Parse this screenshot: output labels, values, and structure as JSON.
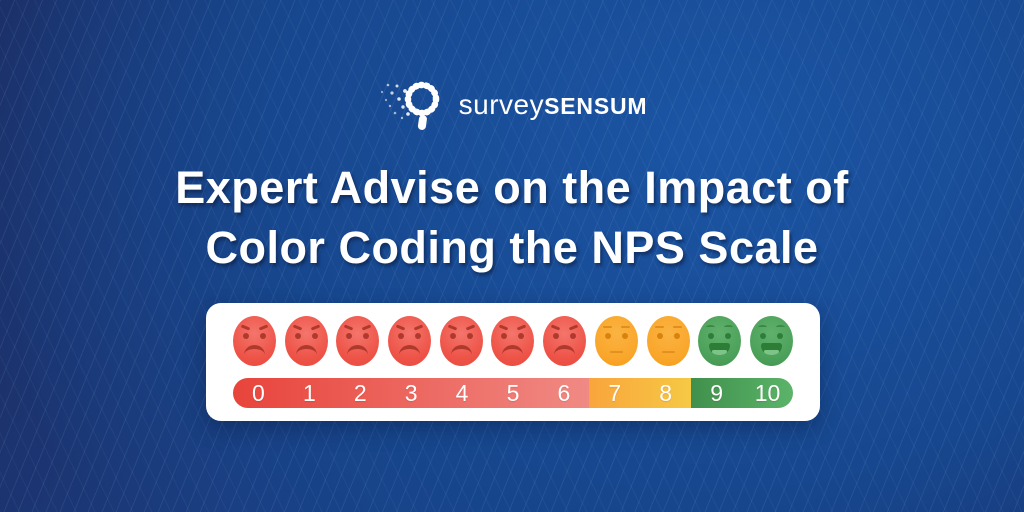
{
  "colors": {
    "background_dark": "#1C2C62",
    "background_mid": "#173F85",
    "background_light": "#1B55A4",
    "pattern_line": "rgba(151,196,240,0.10)",
    "card_background": "#FFFFFF",
    "text": "#FFFFFF",
    "detractor_face": "#EE5347",
    "passive_face": "#F9A62B",
    "promoter_face": "#4CA15A"
  },
  "logo": {
    "icon": "magnifier-particles-icon",
    "brand_light": "survey",
    "brand_bold": "SENSUM"
  },
  "title": {
    "line1": "Expert Advise on the Impact of",
    "line2": "Color Coding the NPS Scale"
  },
  "nps_scale": {
    "faces": [
      {
        "value": 0,
        "mood": "angry"
      },
      {
        "value": 1,
        "mood": "angry"
      },
      {
        "value": 2,
        "mood": "angry"
      },
      {
        "value": 3,
        "mood": "angry"
      },
      {
        "value": 4,
        "mood": "angry"
      },
      {
        "value": 5,
        "mood": "angry"
      },
      {
        "value": 6,
        "mood": "angry"
      },
      {
        "value": 7,
        "mood": "neutral"
      },
      {
        "value": 8,
        "mood": "neutral"
      },
      {
        "value": 9,
        "mood": "happy"
      },
      {
        "value": 10,
        "mood": "happy"
      }
    ],
    "labels": [
      "0",
      "1",
      "2",
      "3",
      "4",
      "5",
      "6",
      "7",
      "8",
      "9",
      "10"
    ],
    "segments": [
      {
        "range": "0-6",
        "mood": "angry",
        "from": "#E8443B",
        "to": "#F08A84",
        "end_pct": 63.6
      },
      {
        "range": "7-8",
        "mood": "neutral",
        "from": "#F9A53C",
        "to": "#F6C944",
        "end_pct": 81.8
      },
      {
        "range": "9-10",
        "mood": "happy",
        "from": "#40904C",
        "to": "#5BB469",
        "end_pct": 100
      }
    ]
  }
}
